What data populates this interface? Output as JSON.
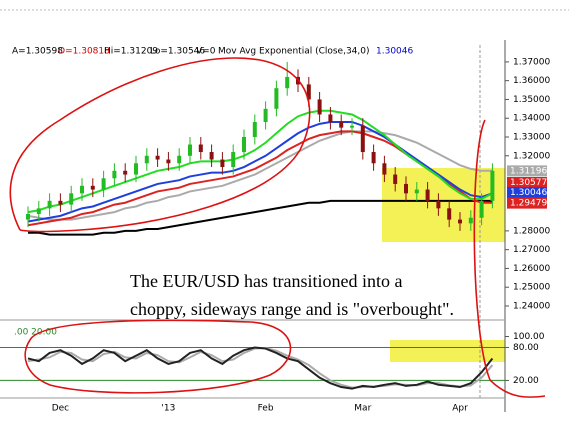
{
  "chart_data": [
    {
      "type": "candlestick",
      "header": [
        {
          "text": "A=1.30598",
          "color": "#000000"
        },
        {
          "text": "O=1.30818",
          "color": "#cc0000"
        },
        {
          "text": "Hi=1.31209",
          "color": "#000000"
        },
        {
          "text": "Lo=1.30546",
          "color": "#000000"
        },
        {
          "text": "V=0",
          "color": "#000000"
        },
        {
          "text": "Mov Avg Exponential (Close,34,0)",
          "color": "#000000"
        },
        {
          "text": "1.30046",
          "color": "#0000cc"
        }
      ],
      "annotation": [
        "The EUR/USD has transitioned into a",
        "choppy, sideways range and is \"overbought\"."
      ],
      "categories": [
        null,
        null,
        null,
        "Dec",
        null,
        null,
        null,
        null,
        null,
        null,
        null,
        null,
        null,
        "'13",
        null,
        null,
        null,
        null,
        null,
        null,
        null,
        null,
        "Feb",
        null,
        null,
        null,
        null,
        null,
        null,
        null,
        null,
        "Mar",
        null,
        null,
        null,
        null,
        null,
        null,
        null,
        null,
        "Apr",
        null,
        null,
        null
      ],
      "open": [
        1.286,
        1.289,
        1.292,
        1.296,
        1.294,
        1.3,
        1.304,
        1.302,
        1.308,
        1.312,
        1.31,
        1.316,
        1.32,
        1.318,
        1.316,
        1.32,
        1.326,
        1.322,
        1.318,
        1.314,
        1.322,
        1.33,
        1.338,
        1.345,
        1.356,
        1.362,
        1.358,
        1.35,
        1.342,
        1.338,
        1.335,
        1.336,
        1.322,
        1.316,
        1.31,
        1.305,
        1.3,
        1.302,
        1.296,
        1.292,
        1.286,
        1.284,
        1.287,
        1.296
      ],
      "high": [
        1.293,
        1.296,
        1.3,
        1.3,
        1.304,
        1.308,
        1.308,
        1.312,
        1.316,
        1.316,
        1.32,
        1.324,
        1.324,
        1.322,
        1.324,
        1.33,
        1.33,
        1.326,
        1.322,
        1.326,
        1.334,
        1.342,
        1.349,
        1.36,
        1.37,
        1.366,
        1.362,
        1.354,
        1.346,
        1.342,
        1.34,
        1.34,
        1.326,
        1.32,
        1.314,
        1.309,
        1.306,
        1.306,
        1.3,
        1.296,
        1.29,
        1.291,
        1.3,
        1.316
      ],
      "low": [
        1.282,
        1.285,
        1.288,
        1.29,
        1.29,
        1.296,
        1.298,
        1.298,
        1.304,
        1.306,
        1.306,
        1.312,
        1.314,
        1.312,
        1.312,
        1.316,
        1.318,
        1.314,
        1.31,
        1.31,
        1.318,
        1.326,
        1.334,
        1.341,
        1.352,
        1.354,
        1.346,
        1.338,
        1.334,
        1.331,
        1.331,
        1.318,
        1.312,
        1.306,
        1.301,
        1.296,
        1.296,
        1.292,
        1.288,
        1.282,
        1.28,
        1.28,
        1.283,
        1.292
      ],
      "close": [
        1.289,
        1.292,
        1.296,
        1.294,
        1.3,
        1.304,
        1.302,
        1.308,
        1.312,
        1.31,
        1.316,
        1.32,
        1.318,
        1.316,
        1.32,
        1.326,
        1.322,
        1.318,
        1.314,
        1.322,
        1.33,
        1.338,
        1.345,
        1.356,
        1.362,
        1.358,
        1.35,
        1.342,
        1.338,
        1.335,
        1.336,
        1.322,
        1.316,
        1.31,
        1.305,
        1.3,
        1.302,
        1.296,
        1.292,
        1.286,
        1.284,
        1.287,
        1.296,
        1.312
      ],
      "up_color": "#22bb22",
      "down_color": "#8b1010",
      "series": [
        {
          "color": "#aaaaaa",
          "values": [
            1.288,
            1.287,
            1.286,
            1.286,
            1.286,
            1.287,
            1.288,
            1.289,
            1.29,
            1.292,
            1.293,
            1.295,
            1.296,
            1.298,
            1.299,
            1.301,
            1.302,
            1.303,
            1.304,
            1.306,
            1.308,
            1.31,
            1.313,
            1.316,
            1.319,
            1.322,
            1.325,
            1.328,
            1.33,
            1.332,
            1.333,
            1.333,
            1.333,
            1.332,
            1.331,
            1.329,
            1.327,
            1.324,
            1.321,
            1.318,
            1.315,
            1.313,
            1.312,
            1.312
          ]
        },
        {
          "color": "#000000",
          "values": [
            1.279,
            1.279,
            1.278,
            1.278,
            1.278,
            1.278,
            1.278,
            1.279,
            1.279,
            1.28,
            1.28,
            1.281,
            1.281,
            1.282,
            1.283,
            1.284,
            1.285,
            1.286,
            1.287,
            1.288,
            1.289,
            1.29,
            1.291,
            1.292,
            1.293,
            1.294,
            1.295,
            1.295,
            1.296,
            1.296,
            1.296,
            1.296,
            1.296,
            1.296,
            1.296,
            1.296,
            1.296,
            1.296,
            1.296,
            1.296,
            1.296,
            1.296,
            1.296,
            1.296
          ]
        },
        {
          "color": "#dd2222",
          "values": [
            1.283,
            1.284,
            1.285,
            1.286,
            1.287,
            1.289,
            1.29,
            1.292,
            1.294,
            1.295,
            1.297,
            1.299,
            1.301,
            1.302,
            1.303,
            1.305,
            1.306,
            1.307,
            1.308,
            1.309,
            1.311,
            1.313,
            1.316,
            1.319,
            1.323,
            1.326,
            1.329,
            1.331,
            1.332,
            1.333,
            1.333,
            1.332,
            1.33,
            1.328,
            1.325,
            1.321,
            1.317,
            1.313,
            1.309,
            1.305,
            1.301,
            1.297,
            1.295,
            1.295
          ]
        },
        {
          "color": "#1f3fdd",
          "values": [
            1.285,
            1.286,
            1.287,
            1.288,
            1.29,
            1.292,
            1.293,
            1.295,
            1.297,
            1.299,
            1.301,
            1.303,
            1.305,
            1.306,
            1.307,
            1.309,
            1.31,
            1.311,
            1.311,
            1.312,
            1.314,
            1.317,
            1.32,
            1.324,
            1.328,
            1.332,
            1.335,
            1.337,
            1.338,
            1.338,
            1.338,
            1.336,
            1.333,
            1.33,
            1.326,
            1.322,
            1.318,
            1.314,
            1.31,
            1.306,
            1.302,
            1.299,
            1.298,
            1.3
          ]
        },
        {
          "color": "#22dd22",
          "values": [
            1.29,
            1.291,
            1.293,
            1.294,
            1.296,
            1.298,
            1.3,
            1.302,
            1.304,
            1.306,
            1.308,
            1.31,
            1.312,
            1.313,
            1.314,
            1.316,
            1.317,
            1.317,
            1.317,
            1.318,
            1.32,
            1.323,
            1.327,
            1.332,
            1.337,
            1.341,
            1.343,
            1.344,
            1.344,
            1.343,
            1.342,
            1.339,
            1.335,
            1.331,
            1.326,
            1.321,
            1.317,
            1.313,
            1.309,
            1.304,
            1.3,
            1.297,
            1.297,
            1.3
          ]
        }
      ],
      "price_tags": [
        {
          "value": 1.31196,
          "label": "1.31196",
          "color": "#aaaaaa"
        },
        {
          "value": 1.30577,
          "label": "1.30577",
          "color": "#dd2222"
        },
        {
          "value": 1.30046,
          "label": "1.30046",
          "color": "#1f3fdd"
        },
        {
          "value": 1.29479,
          "label": "1.29479",
          "color": "#dd2222"
        }
      ],
      "ylim": [
        1.2336,
        1.379
      ],
      "yticks": [
        {
          "value": 1.37,
          "label": "1.37000"
        },
        {
          "value": 1.36,
          "label": "1.36000"
        },
        {
          "value": 1.35,
          "label": "1.35000"
        },
        {
          "value": 1.34,
          "label": "1.34000"
        },
        {
          "value": 1.33,
          "label": "1.33000"
        },
        {
          "value": 1.32,
          "label": "1.32000"
        },
        {
          "value": 1.28,
          "label": "1.28000"
        },
        {
          "value": 1.27,
          "label": "1.27000"
        },
        {
          "value": 1.26,
          "label": "1.26000"
        },
        {
          "value": 1.25,
          "label": "1.25000"
        },
        {
          "value": 1.24,
          "label": "1.24000"
        }
      ]
    },
    {
      "type": "line",
      "label": ".00 20.00",
      "series": [
        {
          "color": "#aaaaaa",
          "values": [
            55,
            58,
            62,
            72,
            70,
            58,
            55,
            68,
            72,
            62,
            60,
            70,
            66,
            55,
            53,
            62,
            72,
            66,
            55,
            58,
            70,
            78,
            79,
            74,
            65,
            58,
            48,
            33,
            20,
            12,
            7,
            8,
            9,
            10,
            13,
            12,
            11,
            15,
            15,
            11,
            9,
            11,
            25,
            48
          ]
        },
        {
          "color": "#222222",
          "values": [
            60,
            55,
            70,
            75,
            65,
            50,
            60,
            75,
            70,
            55,
            65,
            75,
            60,
            50,
            55,
            70,
            75,
            60,
            50,
            65,
            75,
            80,
            78,
            70,
            60,
            55,
            40,
            25,
            15,
            8,
            5,
            10,
            8,
            12,
            15,
            10,
            12,
            18,
            12,
            10,
            8,
            15,
            35,
            60
          ]
        }
      ],
      "ylim": [
        -12,
        130
      ],
      "yticks": [
        {
          "value": 100,
          "label": "100.00"
        },
        {
          "value": 80,
          "label": "80.00"
        },
        {
          "value": 20,
          "label": "20.00"
        }
      ],
      "guide_lines": [
        80,
        20
      ],
      "guide_color": "#2a8a2a"
    }
  ]
}
